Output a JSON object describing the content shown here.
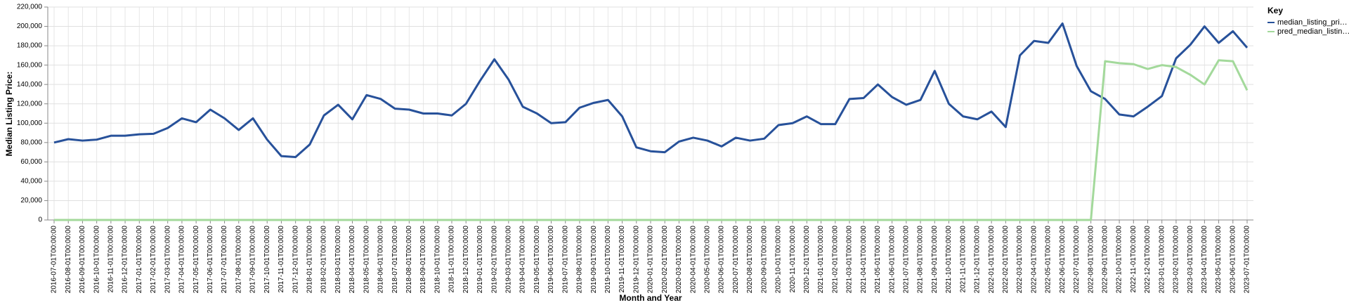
{
  "chart_data": {
    "type": "line",
    "x_label": "Month and Year",
    "y_label": "Median Listing Price:",
    "legend_title": "Key",
    "legend_position": "right",
    "grid": true,
    "categories": [
      "2016-07-01T00:00:00",
      "2016-08-01T00:00:00",
      "2016-09-01T00:00:00",
      "2016-10-01T00:00:00",
      "2016-11-01T00:00:00",
      "2016-12-01T00:00:00",
      "2017-01-01T00:00:00",
      "2017-02-01T00:00:00",
      "2017-03-01T00:00:00",
      "2017-04-01T00:00:00",
      "2017-05-01T00:00:00",
      "2017-06-01T00:00:00",
      "2017-07-01T00:00:00",
      "2017-08-01T00:00:00",
      "2017-09-01T00:00:00",
      "2017-10-01T00:00:00",
      "2017-11-01T00:00:00",
      "2017-12-01T00:00:00",
      "2018-01-01T00:00:00",
      "2018-02-01T00:00:00",
      "2018-03-01T00:00:00",
      "2018-04-01T00:00:00",
      "2018-05-01T00:00:00",
      "2018-06-01T00:00:00",
      "2018-07-01T00:00:00",
      "2018-08-01T00:00:00",
      "2018-09-01T00:00:00",
      "2018-10-01T00:00:00",
      "2018-11-01T00:00:00",
      "2018-12-01T00:00:00",
      "2019-01-01T00:00:00",
      "2019-02-01T00:00:00",
      "2019-03-01T00:00:00",
      "2019-04-01T00:00:00",
      "2019-05-01T00:00:00",
      "2019-06-01T00:00:00",
      "2019-07-01T00:00:00",
      "2019-08-01T00:00:00",
      "2019-09-01T00:00:00",
      "2019-10-01T00:00:00",
      "2019-11-01T00:00:00",
      "2019-12-01T00:00:00",
      "2020-01-01T00:00:00",
      "2020-02-01T00:00:00",
      "2020-03-01T00:00:00",
      "2020-04-01T00:00:00",
      "2020-05-01T00:00:00",
      "2020-06-01T00:00:00",
      "2020-07-01T00:00:00",
      "2020-08-01T00:00:00",
      "2020-09-01T00:00:00",
      "2020-10-01T00:00:00",
      "2020-11-01T00:00:00",
      "2020-12-01T00:00:00",
      "2021-01-01T00:00:00",
      "2021-02-01T00:00:00",
      "2021-03-01T00:00:00",
      "2021-04-01T00:00:00",
      "2021-05-01T00:00:00",
      "2021-06-01T00:00:00",
      "2021-07-01T00:00:00",
      "2021-08-01T00:00:00",
      "2021-09-01T00:00:00",
      "2021-10-01T00:00:00",
      "2021-11-01T00:00:00",
      "2021-12-01T00:00:00",
      "2022-01-01T00:00:00",
      "2022-02-01T00:00:00",
      "2022-03-01T00:00:00",
      "2022-04-01T00:00:00",
      "2022-05-01T00:00:00",
      "2022-06-01T00:00:00",
      "2022-07-01T00:00:00",
      "2022-08-01T00:00:00",
      "2022-09-01T00:00:00",
      "2022-10-01T00:00:00",
      "2022-11-01T00:00:00",
      "2022-12-01T00:00:00",
      "2023-01-01T00:00:00",
      "2023-02-01T00:00:00",
      "2023-03-01T00:00:00",
      "2023-04-01T00:00:00",
      "2023-05-01T00:00:00",
      "2023-06-01T00:00:00",
      "2023-07-01T00:00:00"
    ],
    "series": [
      {
        "name": "median_listing_pri…",
        "color": "#27519a",
        "values": [
          80000,
          83500,
          82000,
          83000,
          87000,
          87000,
          88500,
          89000,
          95000,
          105000,
          101000,
          114000,
          105000,
          93000,
          105000,
          83000,
          66000,
          65000,
          78000,
          108000,
          119000,
          104000,
          129000,
          125000,
          115000,
          114000,
          110000,
          110000,
          108000,
          120000,
          144000,
          166000,
          145000,
          117000,
          110000,
          100000,
          101000,
          116000,
          121000,
          124000,
          107000,
          75000,
          71000,
          70000,
          81000,
          85000,
          82000,
          76000,
          85000,
          82000,
          84000,
          98000,
          100000,
          107000,
          99000,
          99000,
          125000,
          126000,
          140000,
          127000,
          119000,
          124000,
          154000,
          120000,
          107000,
          104000,
          112000,
          96000,
          170000,
          185000,
          183000,
          203000,
          159000,
          133000,
          125000,
          109000,
          107000,
          117000,
          128000,
          167000,
          181000,
          200000,
          183000,
          195000,
          178000
        ]
      },
      {
        "name": "pred_median_listin…",
        "color": "#a3d99b",
        "values": [
          0,
          0,
          0,
          0,
          0,
          0,
          0,
          0,
          0,
          0,
          0,
          0,
          0,
          0,
          0,
          0,
          0,
          0,
          0,
          0,
          0,
          0,
          0,
          0,
          0,
          0,
          0,
          0,
          0,
          0,
          0,
          0,
          0,
          0,
          0,
          0,
          0,
          0,
          0,
          0,
          0,
          0,
          0,
          0,
          0,
          0,
          0,
          0,
          0,
          0,
          0,
          0,
          0,
          0,
          0,
          0,
          0,
          0,
          0,
          0,
          0,
          0,
          0,
          0,
          0,
          0,
          0,
          0,
          0,
          0,
          0,
          0,
          0,
          0,
          164000,
          162000,
          161000,
          156000,
          160000,
          158000,
          150000,
          140000,
          165000,
          164000,
          134000
        ]
      }
    ],
    "ylim": [
      0,
      220000
    ],
    "yticks": [
      0,
      {
        "value": 20000,
        "label": "20,000"
      },
      {
        "value": 40000,
        "label": "40,000"
      },
      {
        "value": 60000,
        "label": "60,000"
      },
      {
        "value": 80000,
        "label": "80,000"
      },
      {
        "value": 100000,
        "label": "100,000"
      },
      {
        "value": 120000,
        "label": "120,000"
      },
      {
        "value": 140000,
        "label": "140,000"
      },
      {
        "value": 160000,
        "label": "160,000"
      },
      {
        "value": 180000,
        "label": "180,000"
      },
      {
        "value": 200000,
        "label": "200,000"
      },
      {
        "value": 220000,
        "label": "220,000"
      }
    ]
  }
}
